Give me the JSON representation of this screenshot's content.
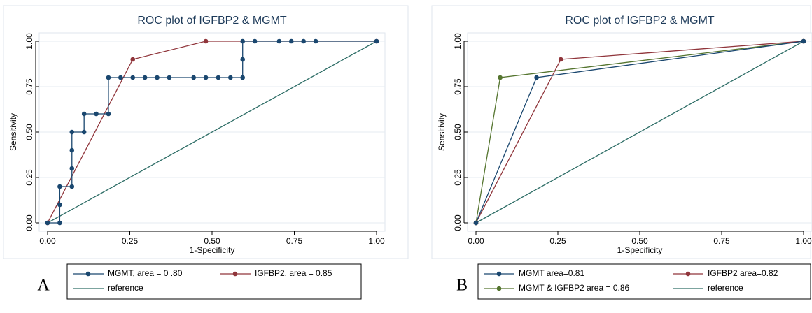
{
  "chart_data": [
    {
      "type": "line",
      "title": "ROC plot of IGFBP2 & MGMT",
      "panel_label": "A",
      "x_label": "1-Specificity",
      "y_label": "Sensitivity",
      "xlim": [
        0,
        1
      ],
      "ylim": [
        0,
        1
      ],
      "xticks": [
        {
          "value": 0,
          "label": "0.00"
        },
        {
          "value": 0.25,
          "label": "0.25"
        },
        {
          "value": 0.5,
          "label": "0.50"
        },
        {
          "value": 0.75,
          "label": "0.75"
        },
        {
          "value": 1,
          "label": "1.00"
        }
      ],
      "yticks": [
        {
          "value": 0,
          "label": "0.00"
        },
        {
          "value": 0.25,
          "label": "0.25"
        },
        {
          "value": 0.5,
          "label": "0.50"
        },
        {
          "value": 0.75,
          "label": "0.75"
        },
        {
          "value": 1,
          "label": "1.00"
        }
      ],
      "grid": true,
      "series": [
        {
          "name": "MGMT, area = 0 .80",
          "color": "#1a476f",
          "markers": true,
          "x": [
            0,
            0.037,
            0.037,
            0.037,
            0.074,
            0.074,
            0.074,
            0.074,
            0.111,
            0.111,
            0.148,
            0.185,
            0.185,
            0.222,
            0.259,
            0.296,
            0.333,
            0.37,
            0.444,
            0.481,
            0.519,
            0.556,
            0.593,
            0.593,
            0.593,
            0.63,
            0.704,
            0.741,
            0.778,
            0.815,
            1
          ],
          "values": [
            0,
            0,
            0.1,
            0.2,
            0.2,
            0.3,
            0.4,
            0.5,
            0.5,
            0.6,
            0.6,
            0.6,
            0.8,
            0.8,
            0.8,
            0.8,
            0.8,
            0.8,
            0.8,
            0.8,
            0.8,
            0.8,
            0.8,
            0.9,
            1,
            1,
            1,
            1,
            1,
            1,
            1
          ]
        },
        {
          "name": "IGFBP2, area = 0.85",
          "color": "#90353b",
          "markers": true,
          "x": [
            0,
            0.259,
            0.481,
            1
          ],
          "values": [
            0,
            0.9,
            1,
            1
          ]
        },
        {
          "name": "reference",
          "color": "#2d6d66",
          "markers": false,
          "x": [
            0,
            1
          ],
          "values": [
            0,
            1
          ]
        }
      ]
    },
    {
      "type": "line",
      "title": "ROC plot of IGFBP2 & MGMT",
      "panel_label": "B",
      "x_label": "1-Specificity",
      "y_label": "Sensitivity",
      "xlim": [
        0,
        1
      ],
      "ylim": [
        0,
        1
      ],
      "xticks": [
        {
          "value": 0,
          "label": "0.00"
        },
        {
          "value": 0.25,
          "label": "0.25"
        },
        {
          "value": 0.5,
          "label": "0.50"
        },
        {
          "value": 0.75,
          "label": "0.75"
        },
        {
          "value": 1,
          "label": "1.00"
        }
      ],
      "yticks": [
        {
          "value": 0,
          "label": "0.00"
        },
        {
          "value": 0.25,
          "label": "0.25"
        },
        {
          "value": 0.5,
          "label": "0.50"
        },
        {
          "value": 0.75,
          "label": "0.75"
        },
        {
          "value": 1,
          "label": "1.00"
        }
      ],
      "grid": true,
      "series": [
        {
          "name": "MGMT area=0.81",
          "color": "#1a476f",
          "markers": true,
          "x": [
            0,
            0.185,
            1
          ],
          "values": [
            0,
            0.8,
            1
          ]
        },
        {
          "name": "IGFBP2 area=0.82",
          "color": "#90353b",
          "markers": true,
          "x": [
            0,
            0.259,
            1
          ],
          "values": [
            0,
            0.9,
            1
          ]
        },
        {
          "name": "MGMT & IGFBP2 area = 0.86",
          "color": "#55752f",
          "markers": true,
          "x": [
            0,
            0.074,
            1
          ],
          "values": [
            0,
            0.8,
            1
          ]
        },
        {
          "name": "reference",
          "color": "#2d6d66",
          "markers": false,
          "x": [
            0,
            1
          ],
          "values": [
            0,
            1
          ]
        }
      ]
    }
  ]
}
